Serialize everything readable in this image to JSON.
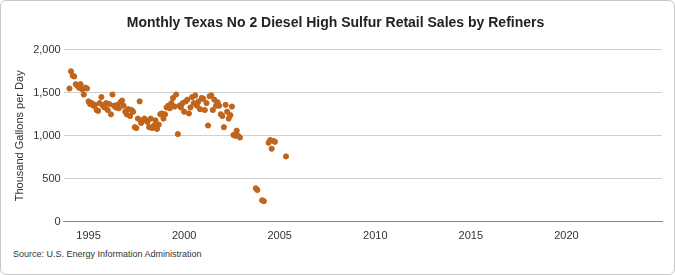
{
  "chart_data": {
    "type": "scatter",
    "title": "Monthly Texas No 2 Diesel High Sulfur Retail Sales by Refiners",
    "y_label": "Thousand Gallons per Day",
    "source": "Source: U.S. Energy Information Administration",
    "color": "#c0651b",
    "marker": "circle",
    "grid": true,
    "legend": false,
    "xlim": [
      1993.7,
      2025
    ],
    "xticks": [
      1995,
      2000,
      2005,
      2010,
      2015,
      2020
    ],
    "ylim": [
      0,
      2000
    ],
    "yticks": [
      0,
      500,
      {
        "value": 1000,
        "label": "1,000"
      },
      {
        "value": 1500,
        "label": "1,500"
      },
      {
        "value": 2000,
        "label": "2,000"
      }
    ],
    "x": [
      1994,
      1994.08,
      1994.17,
      1994.25,
      1994.33,
      1994.42,
      1994.5,
      1994.58,
      1994.67,
      1994.75,
      1994.83,
      1994.92,
      1995,
      1995.08,
      1995.17,
      1995.25,
      1995.33,
      1995.42,
      1995.5,
      1995.58,
      1995.67,
      1995.75,
      1995.83,
      1995.92,
      1996,
      1996.08,
      1996.17,
      1996.25,
      1996.33,
      1996.42,
      1996.5,
      1996.58,
      1996.67,
      1996.75,
      1996.83,
      1996.92,
      1997,
      1997.08,
      1997.17,
      1997.25,
      1997.33,
      1997.42,
      1997.5,
      1997.58,
      1997.67,
      1997.75,
      1997.83,
      1997.92,
      1998,
      1998.08,
      1998.17,
      1998.25,
      1998.33,
      1998.42,
      1998.5,
      1998.58,
      1998.67,
      1998.75,
      1998.83,
      1998.92,
      1999,
      1999.08,
      1999.17,
      1999.25,
      1999.33,
      1999.42,
      1999.5,
      1999.58,
      1999.67,
      1999.75,
      1999.83,
      1999.92,
      2000,
      2000.08,
      2000.17,
      2000.25,
      2000.33,
      2000.42,
      2000.5,
      2000.58,
      2000.67,
      2000.75,
      2000.83,
      2000.92,
      2001,
      2001.08,
      2001.17,
      2001.25,
      2001.33,
      2001.42,
      2001.5,
      2001.58,
      2001.67,
      2001.75,
      2001.83,
      2001.92,
      2002,
      2002.08,
      2002.17,
      2002.25,
      2002.33,
      2002.42,
      2002.5,
      2002.58,
      2002.67,
      2002.75,
      2002.83,
      2002.92,
      2003.75,
      2003.83,
      2004.08,
      2004.17,
      2004.42,
      2004.5,
      2004.58,
      2004.67,
      2004.75,
      2005.33
    ],
    "values": [
      1550,
      1750,
      1700,
      1690,
      1600,
      1580,
      1560,
      1600,
      1540,
      1480,
      1560,
      1550,
      1400,
      1370,
      1380,
      1350,
      1360,
      1300,
      1290,
      1380,
      1450,
      1350,
      1330,
      1380,
      1300,
      1370,
      1250,
      1480,
      1350,
      1330,
      1360,
      1320,
      1390,
      1410,
      1350,
      1280,
      1250,
      1310,
      1230,
      1300,
      1280,
      1100,
      1090,
      1200,
      1400,
      1150,
      1180,
      1200,
      1180,
      1160,
      1100,
      1200,
      1090,
      1120,
      1180,
      1080,
      1130,
      1250,
      1260,
      1200,
      1250,
      1330,
      1350,
      1320,
      1380,
      1440,
      1340,
      1480,
      1020,
      1350,
      1330,
      1380,
      1280,
      1400,
      1420,
      1260,
      1330,
      1450,
      1380,
      1470,
      1350,
      1400,
      1310,
      1440,
      1430,
      1300,
      1380,
      1120,
      1460,
      1470,
      1300,
      1420,
      1350,
      1390,
      1350,
      1250,
      1230,
      1100,
      1360,
      1280,
      1200,
      1240,
      1340,
      1010,
      1000,
      1060,
      1000,
      980,
      390,
      370,
      250,
      240,
      920,
      950,
      850,
      940,
      930,
      760
    ]
  }
}
